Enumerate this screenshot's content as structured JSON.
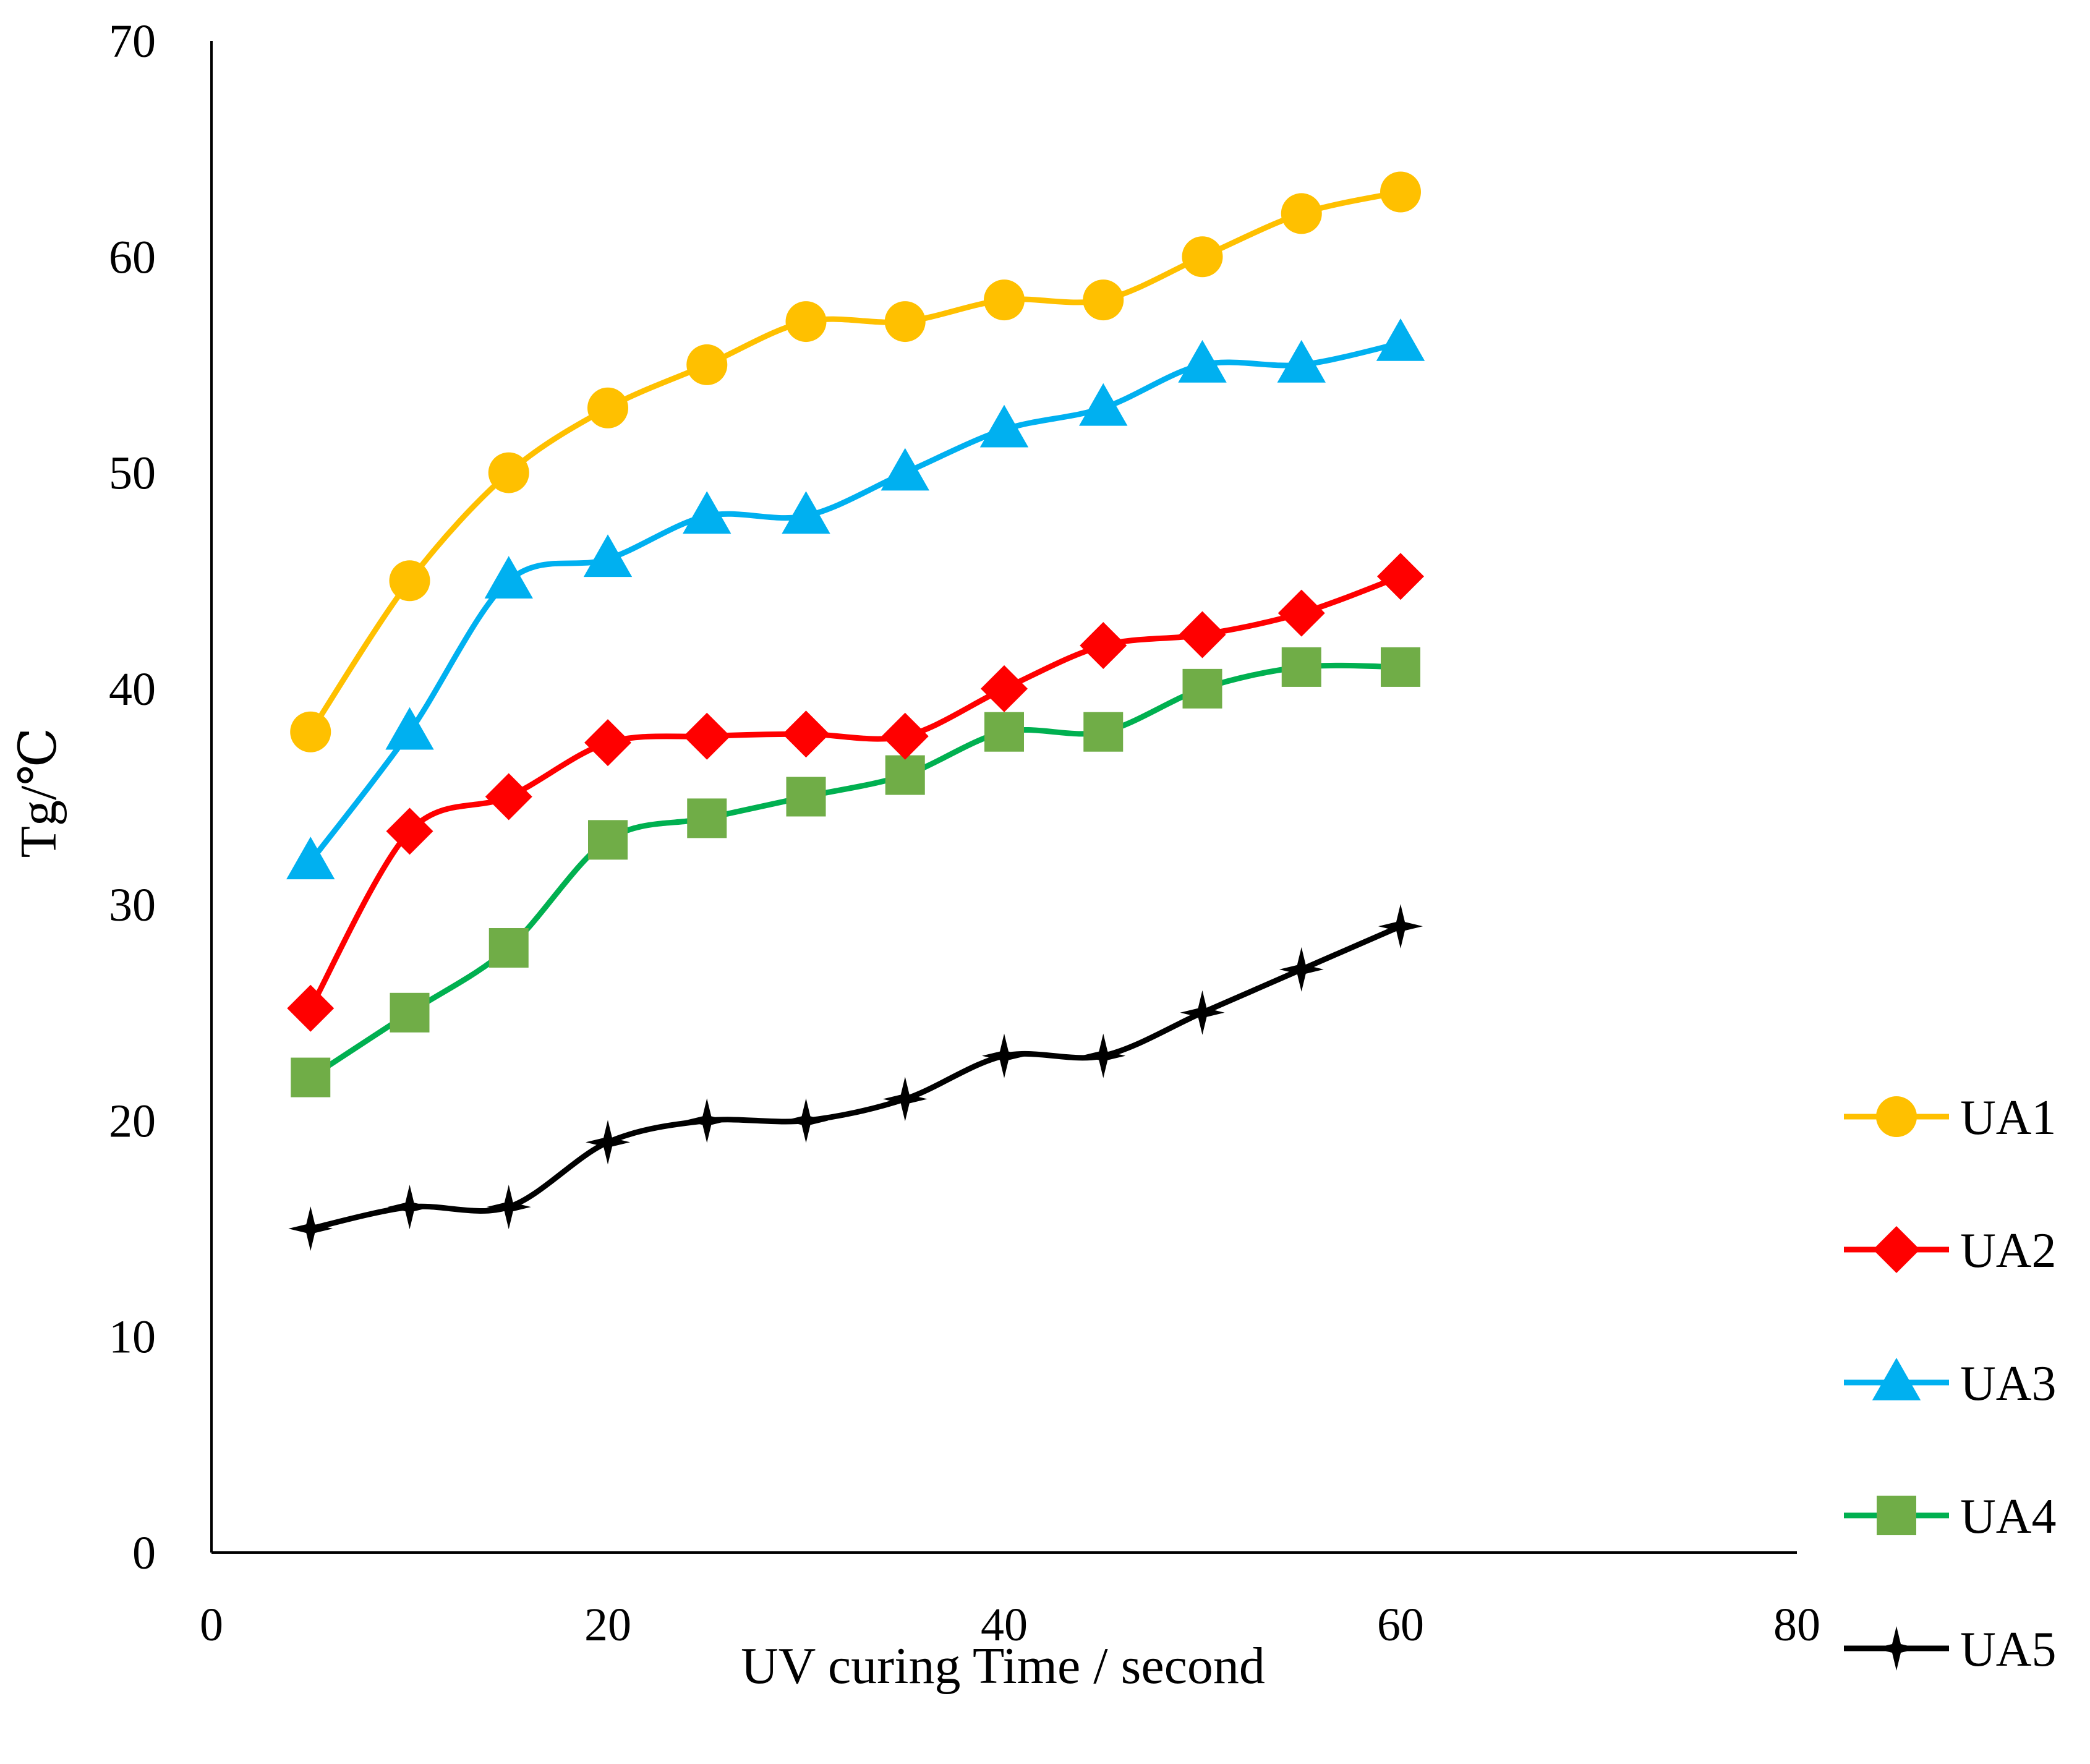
{
  "chart_data": {
    "type": "line",
    "title": "",
    "xlabel": "UV curing Time / second",
    "ylabel": "Tg/℃",
    "xlim": [
      0,
      80
    ],
    "ylim": [
      0,
      70
    ],
    "x_ticks": [
      "0",
      "20",
      "40",
      "60",
      "80"
    ],
    "y_ticks": [
      "0",
      "10",
      "20",
      "30",
      "40",
      "50",
      "60",
      "70"
    ],
    "grid": false,
    "legend_position": "right",
    "smooth_lines": true,
    "x": [
      5,
      10,
      15,
      20,
      25,
      30,
      35,
      40,
      45,
      50,
      55,
      60
    ],
    "series": [
      {
        "name": "UA1",
        "color": "#FFC000",
        "marker": "circle",
        "values": [
          38,
          45,
          50,
          53,
          55,
          57,
          57,
          58,
          58,
          60,
          62,
          63
        ]
      },
      {
        "name": "UA2",
        "color": "#FF0000",
        "marker": "diamond",
        "values": [
          25.2,
          33.4,
          35,
          37.5,
          37.8,
          37.9,
          37.8,
          40,
          42,
          42.5,
          43.5,
          45.2
        ]
      },
      {
        "name": "UA3",
        "color": "#00B0F0",
        "marker": "triangle",
        "values": [
          32,
          38,
          45,
          46,
          48,
          48,
          50,
          52,
          53,
          55,
          55,
          56
        ]
      },
      {
        "name": "UA4",
        "color": "#70AD47",
        "line_color": "#00B050",
        "marker": "square",
        "values": [
          22,
          25,
          28,
          33,
          34,
          35,
          36,
          38,
          38,
          40,
          41,
          41
        ]
      },
      {
        "name": "UA5",
        "color": "#000000",
        "marker": "star",
        "values": [
          15,
          16,
          16,
          19,
          20,
          20,
          21,
          23,
          23,
          25,
          27,
          29
        ]
      }
    ]
  }
}
